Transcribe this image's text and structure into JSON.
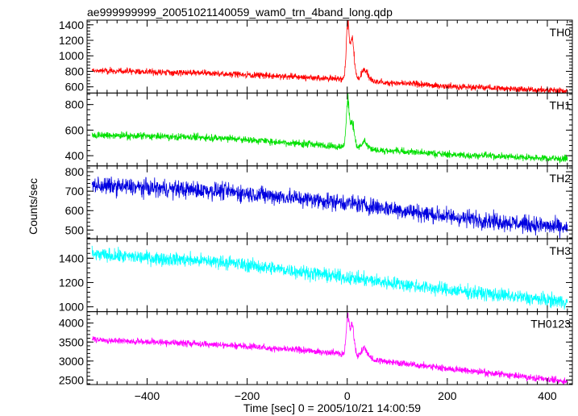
{
  "title": "ae999999999_20051021140059_wam0_trn_4band_long.qdp",
  "chart_data": {
    "type": "line",
    "xlabel": "Time [sec] 0 = 2005/10/21 14:00:59",
    "ylabel": "Counts/sec",
    "xlim": [
      -520,
      450
    ],
    "xticks": [
      -400,
      -200,
      0,
      200,
      400
    ],
    "x_tick_labels": [
      "−400",
      "−200",
      "0",
      "200",
      "400"
    ],
    "grid": false,
    "panels": [
      {
        "name": "TH0",
        "color": "#ff0000",
        "ylim": [
          520,
          1460
        ],
        "yticks": [
          600,
          800,
          1000,
          1200,
          1400
        ],
        "y_tick_labels": [
          "600",
          "800",
          "1000",
          "1200",
          "1400"
        ],
        "x_range": [
          -510,
          440
        ],
        "baseline": [
          [
            -510,
            810
          ],
          [
            -250,
            770
          ],
          [
            -5,
            700
          ],
          [
            40,
            670
          ],
          [
            200,
            610
          ],
          [
            440,
            545
          ]
        ],
        "noise": 50,
        "peaks": [
          [
            1,
            760,
            3
          ],
          [
            10,
            600,
            4
          ],
          [
            35,
            180,
            6
          ]
        ]
      },
      {
        "name": "TH1",
        "color": "#00e000",
        "ylim": [
          320,
          890
        ],
        "yticks": [
          400,
          600,
          800
        ],
        "y_tick_labels": [
          "400",
          "600",
          "800"
        ],
        "x_range": [
          -510,
          440
        ],
        "baseline": [
          [
            -510,
            560
          ],
          [
            -250,
            540
          ],
          [
            -5,
            470
          ],
          [
            40,
            450
          ],
          [
            200,
            410
          ],
          [
            440,
            375
          ]
        ],
        "noise": 35,
        "peaks": [
          [
            1,
            400,
            3
          ],
          [
            10,
            230,
            4
          ],
          [
            35,
            60,
            6
          ]
        ]
      },
      {
        "name": "TH2",
        "color": "#0000e0",
        "ylim": [
          455,
          830
        ],
        "yticks": [
          500,
          600,
          700,
          800
        ],
        "y_tick_labels": [
          "500",
          "600",
          "700",
          "800"
        ],
        "x_range": [
          -510,
          440
        ],
        "baseline": [
          [
            -510,
            730
          ],
          [
            -250,
            700
          ],
          [
            0,
            640
          ],
          [
            200,
            570
          ],
          [
            440,
            510
          ]
        ],
        "noise": 55,
        "peaks": []
      },
      {
        "name": "TH3",
        "color": "#00ffff",
        "ylim": [
          960,
          1560
        ],
        "yticks": [
          1000,
          1200,
          1400
        ],
        "y_tick_labels": [
          "1000",
          "1200",
          "1400"
        ],
        "x_range": [
          -510,
          440
        ],
        "baseline": [
          [
            -510,
            1430
          ],
          [
            -250,
            1370
          ],
          [
            0,
            1240
          ],
          [
            200,
            1140
          ],
          [
            440,
            1040
          ]
        ],
        "noise": 70,
        "peaks": []
      },
      {
        "name": "TH0123",
        "color": "#ff00ff",
        "ylim": [
          2380,
          4300
        ],
        "yticks": [
          2500,
          3000,
          3500,
          4000
        ],
        "y_tick_labels": [
          "2500",
          "3000",
          "3500",
          "4000"
        ],
        "x_range": [
          -510,
          440
        ],
        "baseline": [
          [
            -510,
            3560
          ],
          [
            -250,
            3430
          ],
          [
            -5,
            3200
          ],
          [
            40,
            3050
          ],
          [
            200,
            2800
          ],
          [
            440,
            2460
          ]
        ],
        "noise": 110,
        "peaks": [
          [
            1,
            1050,
            3
          ],
          [
            10,
            900,
            4
          ],
          [
            35,
            300,
            6
          ]
        ]
      }
    ]
  }
}
